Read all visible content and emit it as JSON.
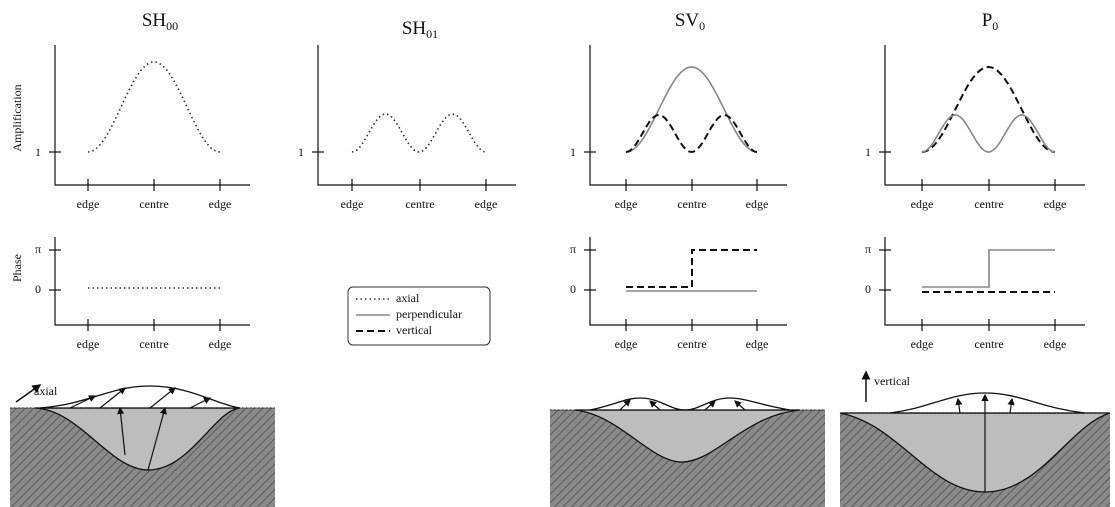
{
  "panels": [
    {
      "title": {
        "main": "SH",
        "sub": "00"
      },
      "amplitude": {
        "y_label": "Amplification",
        "y_tick": "1",
        "x_labels": [
          "edge",
          "centre",
          "edge"
        ]
      },
      "phase": {
        "y_label": "Phase",
        "y_ticks": [
          "π",
          "0"
        ],
        "x_labels": [
          "edge",
          "centre",
          "edge"
        ]
      },
      "cross_section_label": "axial"
    },
    {
      "title": {
        "main": "SH",
        "sub": "01"
      },
      "amplitude": {
        "y_tick": "1",
        "x_labels": [
          "edge",
          "centre",
          "edge"
        ]
      }
    },
    {
      "title": {
        "main": "SV",
        "sub": "0"
      },
      "amplitude": {
        "y_tick": "1",
        "x_labels": [
          "edge",
          "centre",
          "edge"
        ]
      },
      "phase": {
        "y_ticks": [
          "π",
          "0"
        ],
        "x_labels": [
          "edge",
          "centre",
          "edge"
        ]
      }
    },
    {
      "title": {
        "main": "P",
        "sub": "0"
      },
      "amplitude": {
        "y_tick": "1",
        "x_labels": [
          "edge",
          "centre",
          "edge"
        ]
      },
      "phase": {
        "y_ticks": [
          "π",
          "0"
        ],
        "x_labels": [
          "edge",
          "centre",
          "edge"
        ]
      },
      "cross_section_label": "vertical"
    }
  ],
  "legend": [
    "axial",
    "perpendicular",
    "vertical"
  ]
}
